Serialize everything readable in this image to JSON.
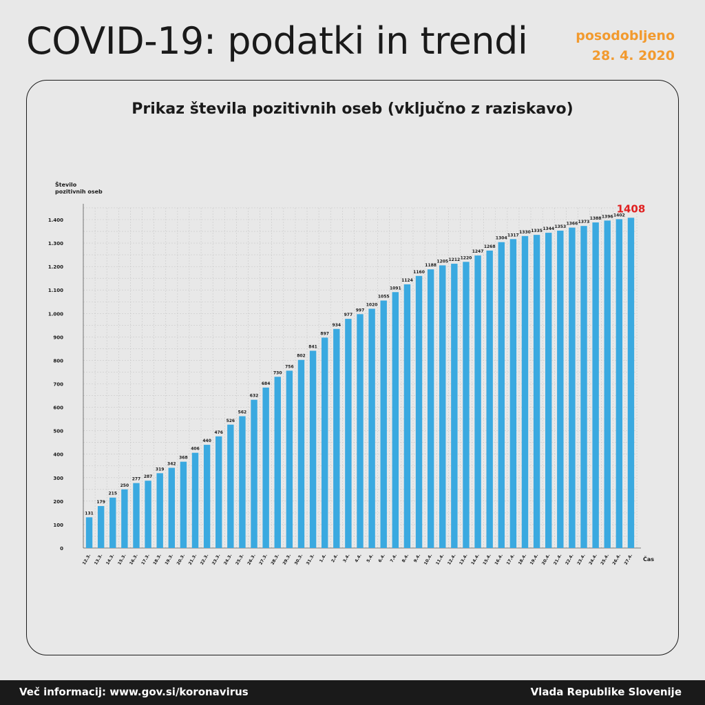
{
  "header": {
    "title": "COVID-19: podatki in trendi",
    "updated_label": "posodobljeno",
    "updated_date": "28. 4. 2020"
  },
  "footer": {
    "info": "Več informacij: www.gov.si/koronavirus",
    "org": "Vlada Republike Slovenije"
  },
  "colors": {
    "bar": "#3aa9e0",
    "highlight": "#e02020",
    "accent": "#f29a2e"
  },
  "chart_data": {
    "type": "bar",
    "title": "Prikaz števila pozitivnih oseb (vključno z raziskavo)",
    "ylabel_line1": "Število",
    "ylabel_line2": "pozitivnih oseb",
    "xlabel": "Čas",
    "ylim": [
      0,
      1400
    ],
    "yticks": [
      0,
      100,
      200,
      300,
      400,
      500,
      600,
      700,
      800,
      900,
      1000,
      1100,
      1200,
      1300,
      1400
    ],
    "ytick_labels": [
      "0",
      "100",
      "200",
      "300",
      "400",
      "500",
      "600",
      "700",
      "800",
      "900",
      "1.000",
      "1.100",
      "1.200",
      "1.300",
      "1.400"
    ],
    "categories": [
      "12.3.",
      "13.3.",
      "14.3.",
      "15.3.",
      "16.3.",
      "17.3.",
      "18.3.",
      "19.3.",
      "20.3.",
      "21.3.",
      "22.3.",
      "23.3.",
      "24.3.",
      "25.3.",
      "26.3.",
      "27.3.",
      "28.3.",
      "29.3.",
      "30.3.",
      "31.3.",
      "1.4.",
      "2.4.",
      "3.4.",
      "4.4.",
      "5.4.",
      "6.4.",
      "7.4.",
      "8.4.",
      "9.4.",
      "10.4.",
      "11.4.",
      "12.4.",
      "13.4.",
      "14.4.",
      "15.4.",
      "16.4.",
      "17.4.",
      "18.4.",
      "19.4.",
      "20.4.",
      "21.4.",
      "22.4.",
      "23.4.",
      "24.4.",
      "25.4.",
      "26.4.",
      "27.4."
    ],
    "values": [
      131,
      179,
      215,
      250,
      277,
      287,
      319,
      342,
      368,
      406,
      440,
      476,
      526,
      562,
      632,
      684,
      730,
      756,
      802,
      841,
      897,
      934,
      977,
      997,
      1020,
      1055,
      1091,
      1124,
      1160,
      1188,
      1205,
      1212,
      1220,
      1247,
      1268,
      1304,
      1317,
      1330,
      1335,
      1344,
      1353,
      1366,
      1373,
      1388,
      1396,
      1402,
      1408
    ],
    "highlight_last": true
  }
}
